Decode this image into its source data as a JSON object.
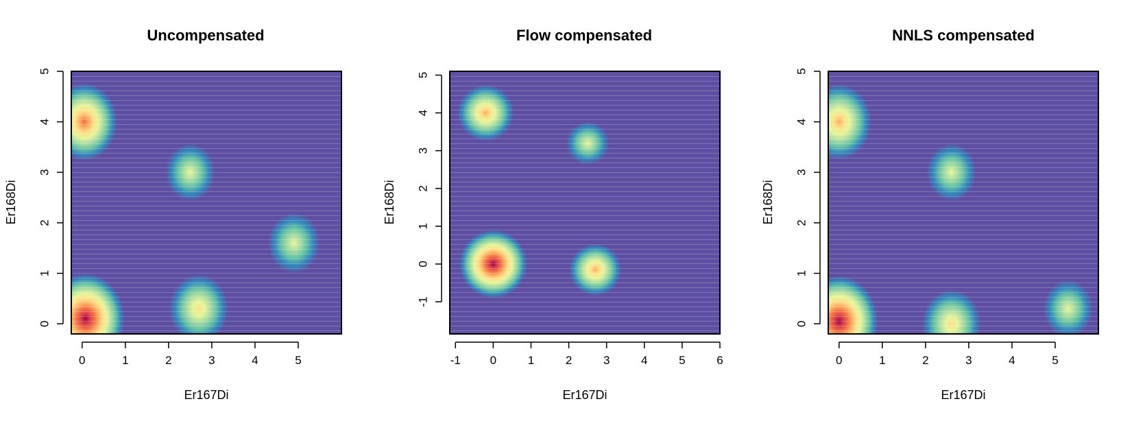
{
  "chart_data": [
    {
      "type": "heatmap",
      "title": "Uncompensated",
      "xlabel": "Er167Di",
      "ylabel": "Er168Di",
      "xlim": [
        -0.25,
        6.0
      ],
      "ylim": [
        -0.2,
        5.0
      ],
      "x_ticks": [
        "0",
        "1",
        "2",
        "3",
        "4",
        "5"
      ],
      "y_ticks": [
        "0",
        "1",
        "2",
        "3",
        "4",
        "5"
      ],
      "density_peaks": [
        {
          "x": 0.08,
          "y": 0.1,
          "intensity": 1.0
        },
        {
          "x": 0.05,
          "y": 4.0,
          "intensity": 0.75
        },
        {
          "x": 2.7,
          "y": 0.3,
          "intensity": 0.6
        },
        {
          "x": 4.9,
          "y": 1.6,
          "intensity": 0.45
        },
        {
          "x": 2.5,
          "y": 3.0,
          "intensity": 0.4
        }
      ]
    },
    {
      "type": "heatmap",
      "title": "Flow compensated",
      "xlabel": "Er167Di",
      "ylabel": "Er168Di",
      "xlim": [
        -1.15,
        6.0
      ],
      "ylim": [
        -1.85,
        5.1
      ],
      "x_ticks": [
        "-1",
        "0",
        "1",
        "2",
        "3",
        "4",
        "5",
        "6"
      ],
      "y_ticks": [
        "-1",
        "0",
        "1",
        "2",
        "3",
        "4",
        "5"
      ],
      "density_peaks": [
        {
          "x": 0.0,
          "y": 0.0,
          "intensity": 1.0
        },
        {
          "x": -0.2,
          "y": 4.0,
          "intensity": 0.72
        },
        {
          "x": 2.7,
          "y": -0.15,
          "intensity": 0.62
        },
        {
          "x": 2.5,
          "y": 3.2,
          "intensity": 0.4
        }
      ]
    },
    {
      "type": "heatmap",
      "title": "NNLS compensated",
      "xlabel": "Er167Di",
      "ylabel": "Er168Di",
      "xlim": [
        -0.25,
        6.0
      ],
      "ylim": [
        -0.2,
        5.0
      ],
      "x_ticks": [
        "0",
        "1",
        "2",
        "3",
        "4",
        "5"
      ],
      "y_ticks": [
        "0",
        "1",
        "2",
        "3",
        "4",
        "5"
      ],
      "density_peaks": [
        {
          "x": 0.0,
          "y": 0.05,
          "intensity": 1.0
        },
        {
          "x": 0.0,
          "y": 4.0,
          "intensity": 0.72
        },
        {
          "x": 2.6,
          "y": 0.0,
          "intensity": 0.6
        },
        {
          "x": 2.6,
          "y": 3.0,
          "intensity": 0.4
        },
        {
          "x": 5.3,
          "y": 0.3,
          "intensity": 0.4
        }
      ]
    }
  ],
  "colors": {
    "palette": [
      "#5e4fa2",
      "#3288bd",
      "#66c2a5",
      "#abdda4",
      "#e6f598",
      "#fee08b",
      "#fdae61",
      "#f46d43",
      "#d53e4f",
      "#9e0142"
    ],
    "axis": "#000000"
  }
}
